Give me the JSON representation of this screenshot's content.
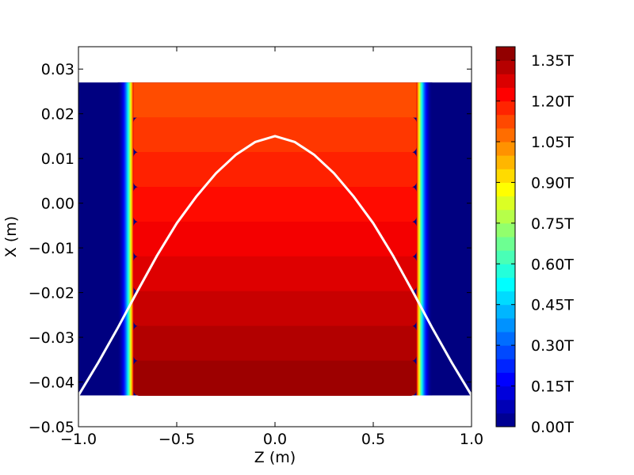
{
  "chart_data": {
    "type": "heatmap",
    "title": "",
    "xlabel": "Z (m)",
    "ylabel": "X (m)",
    "xlim": [
      -1.0,
      1.0
    ],
    "ylim": [
      -0.05,
      0.035
    ],
    "xticks": [
      -1.0,
      -0.5,
      0.0,
      0.5,
      1.0
    ],
    "xtick_labels": [
      "−1.0",
      "−0.5",
      "0.0",
      "0.5",
      "1.0"
    ],
    "yticks": [
      0.03,
      0.02,
      0.01,
      0.0,
      -0.01,
      -0.02,
      -0.03,
      -0.04,
      -0.05
    ],
    "ytick_labels": [
      "0.03",
      "0.02",
      "0.01",
      "0.00",
      "−0.01",
      "−0.02",
      "−0.03",
      "−0.04",
      "−0.05"
    ],
    "field_map": {
      "z_range": [
        -1.0,
        1.0
      ],
      "x_range": [
        -0.043,
        0.027
      ],
      "pole_edges_z": [
        -0.72,
        0.72
      ],
      "fringe_width_z": 0.08,
      "field_at_x_bottom_T": 1.36,
      "field_at_x_top_T": 1.12,
      "contour_levels": 9,
      "outside_field_T": 0.0
    },
    "trajectory": {
      "name": "",
      "color": "#ffffff",
      "z": [
        -1.0,
        -0.9,
        -0.8,
        -0.7,
        -0.6,
        -0.5,
        -0.4,
        -0.3,
        -0.2,
        -0.1,
        0.0,
        0.1,
        0.2,
        0.3,
        0.4,
        0.5,
        0.6,
        0.7,
        0.8,
        0.9,
        1.0
      ],
      "x": [
        -0.043,
        -0.0357,
        -0.0279,
        -0.0197,
        -0.0117,
        -0.0045,
        0.0015,
        0.0067,
        0.0108,
        0.0137,
        0.015,
        0.0137,
        0.0108,
        0.0067,
        0.0015,
        -0.0045,
        -0.0117,
        -0.0197,
        -0.0279,
        -0.0357,
        -0.043
      ]
    },
    "colorbar": {
      "min": 0.0,
      "max": 1.4,
      "ticks": [
        0.0,
        0.15,
        0.3,
        0.45,
        0.6,
        0.75,
        0.9,
        1.05,
        1.2,
        1.35
      ],
      "tick_labels": [
        "0.00T",
        "0.15T",
        "0.30T",
        "0.45T",
        "0.60T",
        "0.75T",
        "0.90T",
        "1.05T",
        "1.20T",
        "1.35T"
      ],
      "colormap": "jet"
    },
    "grid": false,
    "legend": "none"
  }
}
